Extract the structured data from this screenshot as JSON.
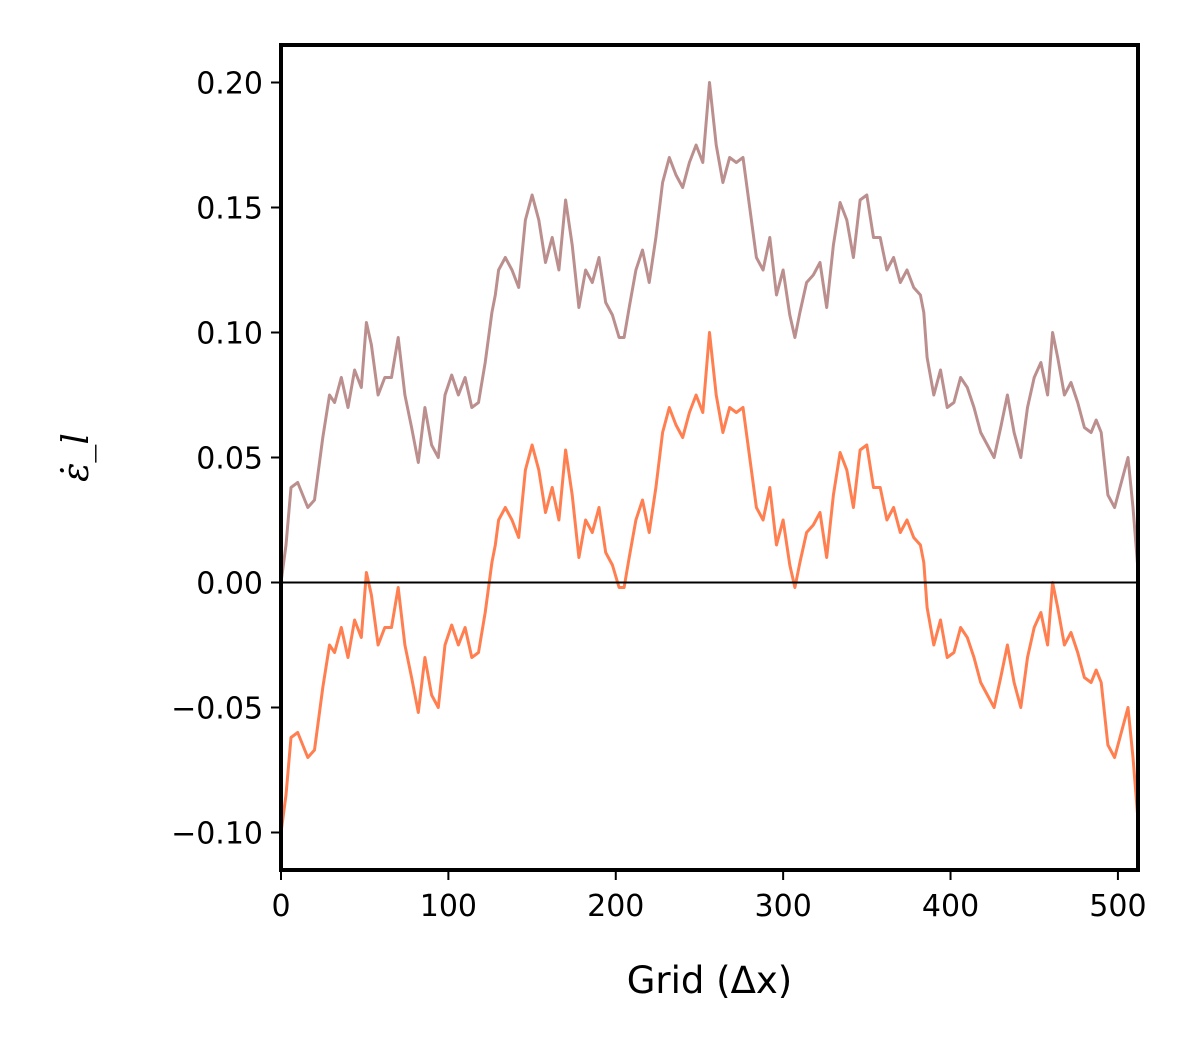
{
  "chart_data": {
    "type": "line",
    "xlabel": "Grid (Δx)",
    "ylabel": "ε̇_l",
    "xlim": [
      0,
      512
    ],
    "ylim": [
      -0.115,
      0.215
    ],
    "xticks": [
      0,
      100,
      200,
      300,
      400,
      500
    ],
    "xtick_labels": [
      "0",
      "100",
      "200",
      "300",
      "400",
      "500"
    ],
    "yticks": [
      -0.1,
      -0.05,
      0.0,
      0.05,
      0.1,
      0.15,
      0.2
    ],
    "ytick_labels": [
      "−0.10",
      "−0.05",
      "0.00",
      "0.05",
      "0.10",
      "0.15",
      "0.20"
    ],
    "grid": false,
    "reference_line": 0,
    "colors": {
      "upper": "#bc8f8f",
      "lower": "#ff7f50",
      "axis": "#000000"
    },
    "series": [
      {
        "color": "#bc8f8f",
        "x": [
          0,
          3,
          6,
          10,
          16,
          20,
          25,
          29,
          32,
          36,
          40,
          44,
          48,
          51,
          54,
          58,
          62,
          66,
          70,
          74,
          78,
          82,
          86,
          90,
          94,
          98,
          102,
          106,
          110,
          114,
          118,
          122,
          126,
          128,
          130,
          134,
          138,
          142,
          146,
          150,
          154,
          158,
          162,
          166,
          170,
          174,
          178,
          182,
          186,
          190,
          194,
          198,
          202,
          205,
          208,
          212,
          216,
          220,
          224,
          228,
          232,
          236,
          240,
          244,
          248,
          252,
          256,
          260,
          264,
          268,
          272,
          276,
          280,
          284,
          288,
          292,
          296,
          300,
          304,
          307,
          310,
          314,
          318,
          322,
          326,
          330,
          334,
          338,
          342,
          346,
          350,
          354,
          358,
          362,
          366,
          370,
          374,
          378,
          382,
          384,
          386,
          390,
          394,
          398,
          402,
          406,
          410,
          414,
          418,
          422,
          426,
          430,
          434,
          438,
          442,
          446,
          450,
          454,
          458,
          461,
          464,
          468,
          472,
          476,
          480,
          484,
          487,
          490,
          494,
          498,
          502,
          506,
          509,
          512
        ],
        "y": [
          0.0,
          0.015,
          0.038,
          0.04,
          0.03,
          0.033,
          0.058,
          0.075,
          0.072,
          0.082,
          0.07,
          0.085,
          0.078,
          0.104,
          0.095,
          0.075,
          0.082,
          0.082,
          0.098,
          0.075,
          0.062,
          0.048,
          0.07,
          0.055,
          0.05,
          0.075,
          0.083,
          0.075,
          0.082,
          0.07,
          0.072,
          0.088,
          0.108,
          0.115,
          0.125,
          0.13,
          0.125,
          0.118,
          0.145,
          0.155,
          0.145,
          0.128,
          0.138,
          0.125,
          0.153,
          0.135,
          0.11,
          0.125,
          0.12,
          0.13,
          0.112,
          0.107,
          0.098,
          0.098,
          0.11,
          0.125,
          0.133,
          0.12,
          0.138,
          0.16,
          0.17,
          0.163,
          0.158,
          0.168,
          0.175,
          0.168,
          0.2,
          0.175,
          0.16,
          0.17,
          0.168,
          0.17,
          0.15,
          0.13,
          0.125,
          0.138,
          0.115,
          0.125,
          0.107,
          0.098,
          0.108,
          0.12,
          0.123,
          0.128,
          0.11,
          0.135,
          0.152,
          0.145,
          0.13,
          0.153,
          0.155,
          0.138,
          0.138,
          0.125,
          0.13,
          0.12,
          0.125,
          0.118,
          0.115,
          0.108,
          0.09,
          0.075,
          0.085,
          0.07,
          0.072,
          0.082,
          0.078,
          0.07,
          0.06,
          0.055,
          0.05,
          0.062,
          0.075,
          0.06,
          0.05,
          0.07,
          0.082,
          0.088,
          0.075,
          0.1,
          0.09,
          0.075,
          0.08,
          0.072,
          0.062,
          0.06,
          0.065,
          0.06,
          0.035,
          0.03,
          0.04,
          0.05,
          0.03,
          0.005
        ]
      },
      {
        "color": "#ff7f50",
        "x": [
          0,
          3,
          6,
          10,
          16,
          20,
          25,
          29,
          32,
          36,
          40,
          44,
          48,
          51,
          54,
          58,
          62,
          66,
          70,
          74,
          78,
          82,
          86,
          90,
          94,
          98,
          102,
          106,
          110,
          114,
          118,
          122,
          126,
          128,
          130,
          134,
          138,
          142,
          146,
          150,
          154,
          158,
          162,
          166,
          170,
          174,
          178,
          182,
          186,
          190,
          194,
          198,
          202,
          205,
          208,
          212,
          216,
          220,
          224,
          228,
          232,
          236,
          240,
          244,
          248,
          252,
          256,
          260,
          264,
          268,
          272,
          276,
          280,
          284,
          288,
          292,
          296,
          300,
          304,
          307,
          310,
          314,
          318,
          322,
          326,
          330,
          334,
          338,
          342,
          346,
          350,
          354,
          358,
          362,
          366,
          370,
          374,
          378,
          382,
          384,
          386,
          390,
          394,
          398,
          402,
          406,
          410,
          414,
          418,
          422,
          426,
          430,
          434,
          438,
          442,
          446,
          450,
          454,
          458,
          461,
          464,
          468,
          472,
          476,
          480,
          484,
          487,
          490,
          494,
          498,
          502,
          506,
          509,
          512
        ],
        "y": [
          -0.1,
          -0.085,
          -0.062,
          -0.06,
          -0.07,
          -0.067,
          -0.042,
          -0.025,
          -0.028,
          -0.018,
          -0.03,
          -0.015,
          -0.022,
          0.004,
          -0.005,
          -0.025,
          -0.018,
          -0.018,
          -0.002,
          -0.025,
          -0.038,
          -0.052,
          -0.03,
          -0.045,
          -0.05,
          -0.025,
          -0.017,
          -0.025,
          -0.018,
          -0.03,
          -0.028,
          -0.012,
          0.008,
          0.015,
          0.025,
          0.03,
          0.025,
          0.018,
          0.045,
          0.055,
          0.045,
          0.028,
          0.038,
          0.025,
          0.053,
          0.035,
          0.01,
          0.025,
          0.02,
          0.03,
          0.012,
          0.007,
          -0.002,
          -0.002,
          0.01,
          0.025,
          0.033,
          0.02,
          0.038,
          0.06,
          0.07,
          0.063,
          0.058,
          0.068,
          0.075,
          0.068,
          0.1,
          0.075,
          0.06,
          0.07,
          0.068,
          0.07,
          0.05,
          0.03,
          0.025,
          0.038,
          0.015,
          0.025,
          0.007,
          -0.002,
          0.008,
          0.02,
          0.023,
          0.028,
          0.01,
          0.035,
          0.052,
          0.045,
          0.03,
          0.053,
          0.055,
          0.038,
          0.038,
          0.025,
          0.03,
          0.02,
          0.025,
          0.018,
          0.015,
          0.008,
          -0.01,
          -0.025,
          -0.015,
          -0.03,
          -0.028,
          -0.018,
          -0.022,
          -0.03,
          -0.04,
          -0.045,
          -0.05,
          -0.038,
          -0.025,
          -0.04,
          -0.05,
          -0.03,
          -0.018,
          -0.012,
          -0.025,
          0.0,
          -0.01,
          -0.025,
          -0.02,
          -0.028,
          -0.038,
          -0.04,
          -0.035,
          -0.04,
          -0.065,
          -0.07,
          -0.06,
          -0.05,
          -0.07,
          -0.095
        ]
      }
    ]
  }
}
